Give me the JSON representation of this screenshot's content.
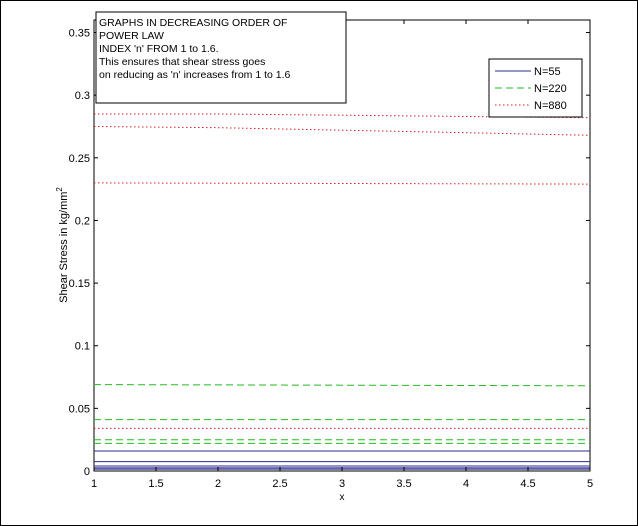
{
  "chart_data": {
    "type": "line",
    "xlabel": "x",
    "ylabel": "Shear Stress in kg/mm",
    "ylabel_sup": "2",
    "xlim": [
      1,
      5
    ],
    "ylim": [
      0,
      0.36
    ],
    "xticks": [
      "1",
      "1.5",
      "2",
      "2.5",
      "3",
      "3.5",
      "4",
      "4.5",
      "5"
    ],
    "xtick_values": [
      1,
      1.5,
      2,
      2.5,
      3,
      3.5,
      4,
      4.5,
      5
    ],
    "yticks": [
      "0",
      "0.05",
      "0.1",
      "0.15",
      "0.2",
      "0.25",
      "0.3",
      "0.35"
    ],
    "ytick_values": [
      0,
      0.05,
      0.1,
      0.15,
      0.2,
      0.25,
      0.3,
      0.35
    ],
    "grid": false,
    "legend_position": "top-right",
    "annotation": [
      "GRAPHS IN DECREASING ORDER OF",
      "POWER LAW",
      "INDEX 'n' FROM 1 to 1.6.",
      "This ensures that shear stress goes",
      "on reducing as 'n'  increases from 1 to 1.6"
    ],
    "series": [
      {
        "name": "N=55",
        "color": "#2b2b8f",
        "dash": "solid",
        "curves": [
          {
            "x": [
              1,
              5
            ],
            "y": [
              0.016,
              0.016
            ]
          },
          {
            "x": [
              1,
              5
            ],
            "y": [
              0.0075,
              0.0075
            ]
          },
          {
            "x": [
              1,
              5
            ],
            "y": [
              0.004,
              0.004
            ]
          },
          {
            "x": [
              1,
              5
            ],
            "y": [
              0.0025,
              0.0025
            ]
          },
          {
            "x": [
              1,
              5
            ],
            "y": [
              0.0015,
              0.0015
            ]
          }
        ]
      },
      {
        "name": "N=220",
        "color": "#22bb22",
        "dash": "dashed",
        "curves": [
          {
            "x": [
              1,
              5
            ],
            "y": [
              0.069,
              0.068
            ]
          },
          {
            "x": [
              1,
              5
            ],
            "y": [
              0.041,
              0.041
            ]
          },
          {
            "x": [
              1,
              5
            ],
            "y": [
              0.025,
              0.025
            ]
          },
          {
            "x": [
              1,
              5
            ],
            "y": [
              0.022,
              0.022
            ]
          }
        ]
      },
      {
        "name": "N=880",
        "color": "#e02020",
        "dash": "dotted",
        "curves": [
          {
            "x": [
              1,
              2,
              3,
              4,
              5
            ],
            "y": [
              0.285,
              0.285,
              0.284,
              0.283,
              0.282
            ]
          },
          {
            "x": [
              1,
              2,
              3,
              4,
              5
            ],
            "y": [
              0.275,
              0.274,
              0.272,
              0.27,
              0.268
            ]
          },
          {
            "x": [
              1,
              5
            ],
            "y": [
              0.23,
              0.229
            ]
          },
          {
            "x": [
              1,
              5
            ],
            "y": [
              0.034,
              0.034
            ]
          }
        ]
      }
    ]
  }
}
